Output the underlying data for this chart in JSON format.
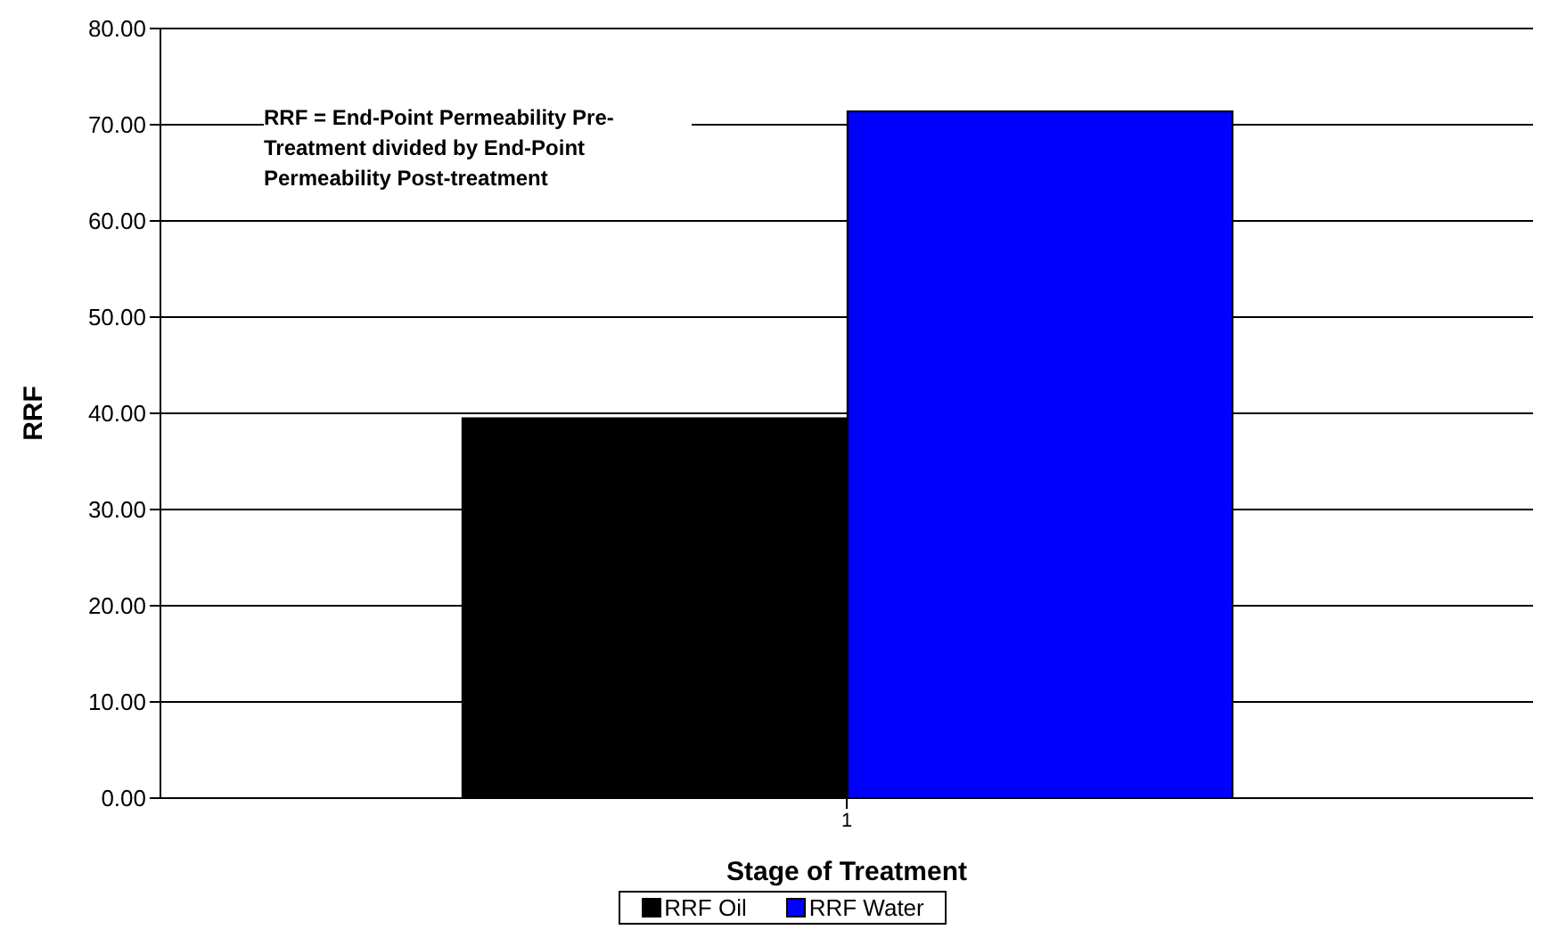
{
  "chart_data": {
    "type": "bar",
    "xlabel": "Stage of Treatment",
    "ylabel": "RRF",
    "categories": [
      "1"
    ],
    "series": [
      {
        "name": "RRF Oil",
        "color": "#000000",
        "values": [
          39.5
        ]
      },
      {
        "name": "RRF Water",
        "color": "#0000ff",
        "values": [
          71.4
        ]
      }
    ],
    "ylim": [
      0,
      80
    ],
    "yticks": [
      {
        "value": 0,
        "label": "0.00"
      },
      {
        "value": 10,
        "label": "10.00"
      },
      {
        "value": 20,
        "label": "20.00"
      },
      {
        "value": 30,
        "label": "30.00"
      },
      {
        "value": 40,
        "label": "40.00"
      },
      {
        "value": 50,
        "label": "50.00"
      },
      {
        "value": 60,
        "label": "60.00"
      },
      {
        "value": 70,
        "label": "70.00"
      },
      {
        "value": 80,
        "label": "80.00"
      }
    ],
    "grid": "y",
    "legend": "bottom",
    "annotations": [
      "RRF = End-Point Permeability Pre-Treatment divided by End-Point Permeability Post-treatment"
    ]
  }
}
